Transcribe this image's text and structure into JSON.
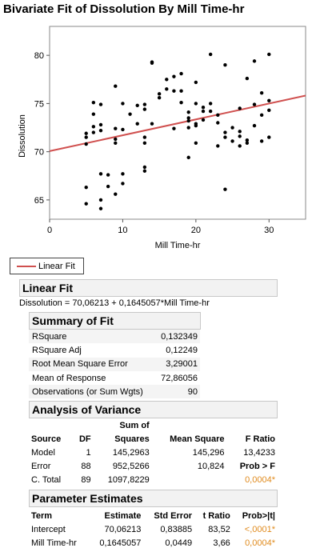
{
  "title": "Bivariate Fit of Dissolution By Mill Time-hr",
  "legend": {
    "label": "Linear Fit",
    "line_color": "#d0504f"
  },
  "chart_data": {
    "type": "scatter",
    "xlabel": "Mill Time-hr",
    "ylabel": "Dissolution",
    "xlim": [
      0,
      35
    ],
    "ylim": [
      63,
      83
    ],
    "x_ticks": [
      0,
      10,
      20,
      30
    ],
    "y_ticks": [
      65,
      70,
      75,
      80
    ],
    "fit_line": {
      "intercept": 70.06213,
      "slope": 0.1645057,
      "color": "#d0504f"
    },
    "points": [
      [
        5,
        64.6
      ],
      [
        5,
        66.3
      ],
      [
        5,
        70.8
      ],
      [
        5,
        71.5
      ],
      [
        5,
        71.9
      ],
      [
        6,
        72.0
      ],
      [
        6,
        72.6
      ],
      [
        6,
        73.9
      ],
      [
        6,
        75.1
      ],
      [
        7,
        64.1
      ],
      [
        7,
        65.0
      ],
      [
        7,
        67.7
      ],
      [
        7,
        72.2
      ],
      [
        7,
        72.8
      ],
      [
        7,
        74.9
      ],
      [
        8,
        66.4
      ],
      [
        8,
        67.6
      ],
      [
        9,
        65.6
      ],
      [
        9,
        70.9
      ],
      [
        9,
        71.3
      ],
      [
        9,
        72.4
      ],
      [
        9,
        76.8
      ],
      [
        10,
        66.7
      ],
      [
        10,
        67.7
      ],
      [
        10,
        72.3
      ],
      [
        10,
        75.0
      ],
      [
        11,
        73.9
      ],
      [
        12,
        72.9
      ],
      [
        12,
        74.8
      ],
      [
        13,
        68.0
      ],
      [
        13,
        68.4
      ],
      [
        13,
        70.9
      ],
      [
        13,
        71.5
      ],
      [
        13,
        74.4
      ],
      [
        13,
        74.9
      ],
      [
        14,
        72.9
      ],
      [
        14,
        79.2
      ],
      [
        14,
        79.3
      ],
      [
        15,
        75.6
      ],
      [
        15,
        76.0
      ],
      [
        16,
        76.5
      ],
      [
        16,
        77.5
      ],
      [
        17,
        72.4
      ],
      [
        17,
        76.3
      ],
      [
        17,
        77.8
      ],
      [
        18,
        75.1
      ],
      [
        18,
        76.3
      ],
      [
        18,
        78.1
      ],
      [
        19,
        69.4
      ],
      [
        19,
        72.5
      ],
      [
        19,
        73.2
      ],
      [
        19,
        73.5
      ],
      [
        19,
        74.1
      ],
      [
        20,
        70.9
      ],
      [
        20,
        72.7
      ],
      [
        20,
        72.9
      ],
      [
        20,
        75.0
      ],
      [
        20,
        77.2
      ],
      [
        21,
        73.3
      ],
      [
        21,
        74.2
      ],
      [
        21,
        74.6
      ],
      [
        22,
        74.2
      ],
      [
        22,
        75.0
      ],
      [
        22,
        80.1
      ],
      [
        23,
        70.6
      ],
      [
        23,
        73.0
      ],
      [
        23,
        73.8
      ],
      [
        24,
        66.1
      ],
      [
        24,
        71.5
      ],
      [
        24,
        72.0
      ],
      [
        24,
        79.0
      ],
      [
        25,
        71.1
      ],
      [
        25,
        72.5
      ],
      [
        26,
        70.6
      ],
      [
        26,
        71.6
      ],
      [
        26,
        72.1
      ],
      [
        26,
        74.5
      ],
      [
        27,
        70.9
      ],
      [
        27,
        71.2
      ],
      [
        27,
        77.6
      ],
      [
        28,
        72.7
      ],
      [
        28,
        74.9
      ],
      [
        28,
        79.4
      ],
      [
        29,
        71.1
      ],
      [
        29,
        73.8
      ],
      [
        29,
        76.1
      ],
      [
        30,
        71.5
      ],
      [
        30,
        74.3
      ],
      [
        30,
        75.3
      ],
      [
        30,
        80.1
      ]
    ]
  },
  "linear_fit": {
    "header": "Linear Fit",
    "equation": "Dissolution = 70,06213 + 0,1645057*Mill Time-hr"
  },
  "summary_of_fit": {
    "header": "Summary of Fit",
    "rows": [
      {
        "label": "RSquare",
        "value": "0,132349"
      },
      {
        "label": "RSquare Adj",
        "value": "0,12249"
      },
      {
        "label": "Root Mean Square Error",
        "value": "3,29001"
      },
      {
        "label": "Mean of Response",
        "value": "72,86056"
      },
      {
        "label": "Observations (or Sum Wgts)",
        "value": "90"
      }
    ]
  },
  "anova": {
    "header": "Analysis of Variance",
    "col_sum_line1": "Sum of",
    "columns": [
      "Source",
      "DF",
      "Squares",
      "Mean Square",
      "F Ratio"
    ],
    "rows": [
      {
        "source": "Model",
        "df": "1",
        "ss": "145,2963",
        "ms": "145,296",
        "f": "13,4233"
      },
      {
        "source": "Error",
        "df": "88",
        "ss": "952,5266",
        "ms": "10,824",
        "f": "Prob > F"
      },
      {
        "source": "C. Total",
        "df": "89",
        "ss": "1097,8229",
        "ms": "",
        "f": "0,0004*"
      }
    ]
  },
  "parameter_estimates": {
    "header": "Parameter Estimates",
    "columns": [
      "Term",
      "Estimate",
      "Std Error",
      "t Ratio",
      "Prob>|t|"
    ],
    "rows": [
      {
        "term": "Intercept",
        "estimate": "70,06213",
        "se": "0,83885",
        "t": "83,52",
        "p": "<,0001*"
      },
      {
        "term": "Mill Time-hr",
        "estimate": "0,1645057",
        "se": "0,0449",
        "t": "3,66",
        "p": "0,0004*"
      }
    ]
  }
}
